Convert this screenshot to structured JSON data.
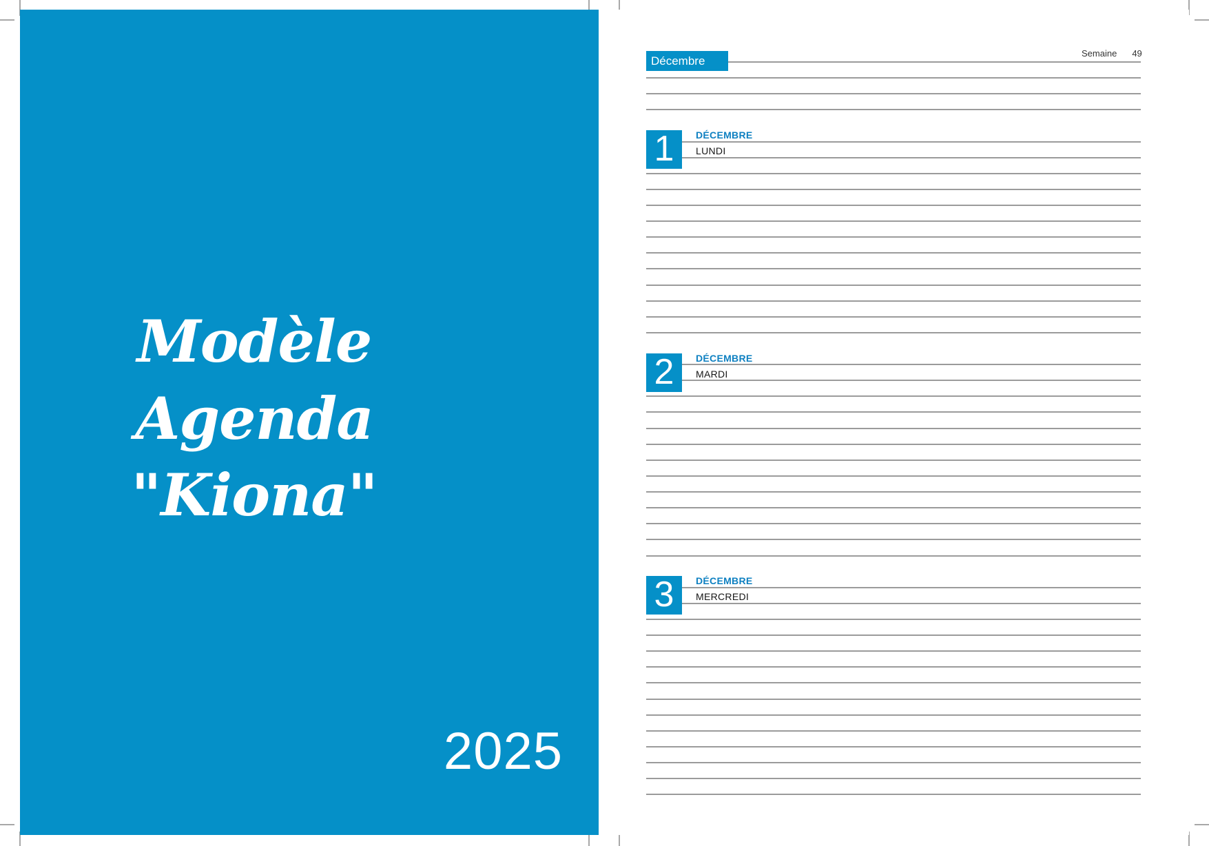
{
  "cover": {
    "title_line1": "Modèle Agenda",
    "title_line2": "\"Kiona\"",
    "year": "2025"
  },
  "page": {
    "month_tab": "Décembre",
    "week_label": "Semaine",
    "week_number": "49",
    "days": [
      {
        "number": "1",
        "month": "DÉCEMBRE",
        "name": "LUNDI"
      },
      {
        "number": "2",
        "month": "DÉCEMBRE",
        "name": "MARDI"
      },
      {
        "number": "3",
        "month": "DÉCEMBRE",
        "name": "MERCREDI"
      }
    ]
  },
  "colors": {
    "accent_blue": "#0590c8",
    "label_blue": "#0e80c1",
    "rule_gray": "#9b9b9b"
  }
}
